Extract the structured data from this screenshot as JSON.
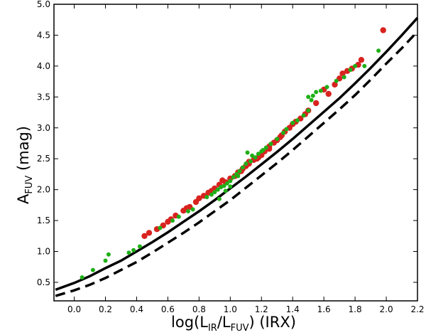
{
  "chart_data": {
    "type": "scatter",
    "title": "",
    "xlabel": {
      "base": "log(L",
      "sub1": "IR",
      "mid": "/L",
      "sub2": "FUV",
      "tail": ") (IRX)"
    },
    "ylabel": {
      "base": "A",
      "sub": "FUV",
      "tail": " (mag)"
    },
    "xlim": [
      -0.13,
      2.2
    ],
    "ylim": [
      0.2,
      5.0
    ],
    "xticks": [
      "0.0",
      "0.2",
      "0.4",
      "0.6",
      "0.8",
      "1.0",
      "1.2",
      "1.4",
      "1.6",
      "1.8",
      "2.0",
      "2.2"
    ],
    "yticks": [
      "0.5",
      "1.0",
      "1.5",
      "2.0",
      "2.5",
      "3.0",
      "3.5",
      "4.0",
      "4.5",
      "5.0"
    ],
    "grid": false,
    "series": [
      {
        "style": "solid-line",
        "color": "#000000",
        "x": [
          -0.12,
          0.0,
          0.1,
          0.2,
          0.3,
          0.4,
          0.5,
          0.6,
          0.7,
          0.8,
          0.9,
          1.0,
          1.1,
          1.2,
          1.3,
          1.4,
          1.5,
          1.6,
          1.7,
          1.8,
          1.9,
          2.0,
          2.1,
          2.2
        ],
        "y": [
          0.38,
          0.49,
          0.6,
          0.73,
          0.85,
          1.0,
          1.15,
          1.31,
          1.48,
          1.65,
          1.83,
          2.02,
          2.21,
          2.41,
          2.61,
          2.82,
          3.04,
          3.26,
          3.48,
          3.72,
          3.97,
          4.23,
          4.5,
          4.78
        ]
      },
      {
        "style": "dashed-line",
        "color": "#000000",
        "x": [
          -0.12,
          0.0,
          0.1,
          0.2,
          0.3,
          0.4,
          0.5,
          0.6,
          0.7,
          0.8,
          0.9,
          1.0,
          1.1,
          1.2,
          1.3,
          1.4,
          1.5,
          1.6,
          1.7,
          1.8,
          1.9,
          2.0,
          2.1,
          2.2
        ],
        "y": [
          0.28,
          0.37,
          0.46,
          0.57,
          0.7,
          0.83,
          0.98,
          1.14,
          1.3,
          1.47,
          1.65,
          1.83,
          2.03,
          2.23,
          2.43,
          2.64,
          2.86,
          3.08,
          3.3,
          3.53,
          3.78,
          4.04,
          4.29,
          4.56
        ]
      },
      {
        "style": "points",
        "color": "#d8231f",
        "size": 4.2,
        "x": [
          0.45,
          0.48,
          0.53,
          0.57,
          0.6,
          0.62,
          0.65,
          0.7,
          0.74,
          0.78,
          0.8,
          0.83,
          0.86,
          0.9,
          0.93,
          0.97,
          1.0,
          1.03,
          1.05,
          1.08,
          1.1,
          1.12,
          1.15,
          1.17,
          1.2,
          1.22,
          1.25,
          1.28,
          1.3,
          1.33,
          1.35,
          1.38,
          1.4,
          1.45,
          1.48,
          1.5,
          1.55,
          1.6,
          1.63,
          1.67,
          1.7,
          1.72,
          1.75,
          1.78,
          1.82,
          1.84,
          1.98,
          1.12,
          1.18,
          1.32,
          0.95,
          1.07,
          1.25,
          1.42,
          0.72,
          0.88
        ],
        "y": [
          1.25,
          1.3,
          1.36,
          1.42,
          1.48,
          1.52,
          1.58,
          1.66,
          1.72,
          1.8,
          1.86,
          1.9,
          1.95,
          2.02,
          2.08,
          2.12,
          2.18,
          2.22,
          2.28,
          2.34,
          2.38,
          2.42,
          2.48,
          2.5,
          2.56,
          2.62,
          2.7,
          2.76,
          2.8,
          2.88,
          2.94,
          3.0,
          3.06,
          3.15,
          3.22,
          3.28,
          3.4,
          3.62,
          3.55,
          3.7,
          3.8,
          3.88,
          3.92,
          3.96,
          4.02,
          4.1,
          4.58,
          2.45,
          2.52,
          2.85,
          2.15,
          2.3,
          2.66,
          3.1,
          1.7,
          1.98
        ]
      },
      {
        "style": "points",
        "color": "#1faf17",
        "size": 3.0,
        "x": [
          0.05,
          0.12,
          0.2,
          0.22,
          0.35,
          0.38,
          0.42,
          0.55,
          0.63,
          0.67,
          0.73,
          0.76,
          0.85,
          0.88,
          0.9,
          0.92,
          0.94,
          0.96,
          0.98,
          1.0,
          1.02,
          1.04,
          1.06,
          1.08,
          1.1,
          1.13,
          1.16,
          1.18,
          1.2,
          1.23,
          1.26,
          1.3,
          1.34,
          1.36,
          1.4,
          1.43,
          1.47,
          1.5,
          1.52,
          1.55,
          1.58,
          1.62,
          1.68,
          1.73,
          1.77,
          1.8,
          1.86,
          1.95,
          0.93,
          1.0,
          1.11,
          1.14,
          1.21,
          1.5,
          1.53,
          0.97,
          1.05
        ],
        "y": [
          0.58,
          0.7,
          0.85,
          0.95,
          0.98,
          1.02,
          1.08,
          1.38,
          1.5,
          1.56,
          1.65,
          1.68,
          1.88,
          1.92,
          1.96,
          2.0,
          2.04,
          2.06,
          2.1,
          2.14,
          2.2,
          2.25,
          2.3,
          2.36,
          2.42,
          2.46,
          2.52,
          2.58,
          2.62,
          2.68,
          2.74,
          2.82,
          2.92,
          2.98,
          3.08,
          3.12,
          3.2,
          3.28,
          3.45,
          3.58,
          3.6,
          3.66,
          3.76,
          3.82,
          3.94,
          4.0,
          4.0,
          4.25,
          1.85,
          2.05,
          2.6,
          2.55,
          2.64,
          3.5,
          3.52,
          1.98,
          2.22
        ]
      }
    ]
  }
}
